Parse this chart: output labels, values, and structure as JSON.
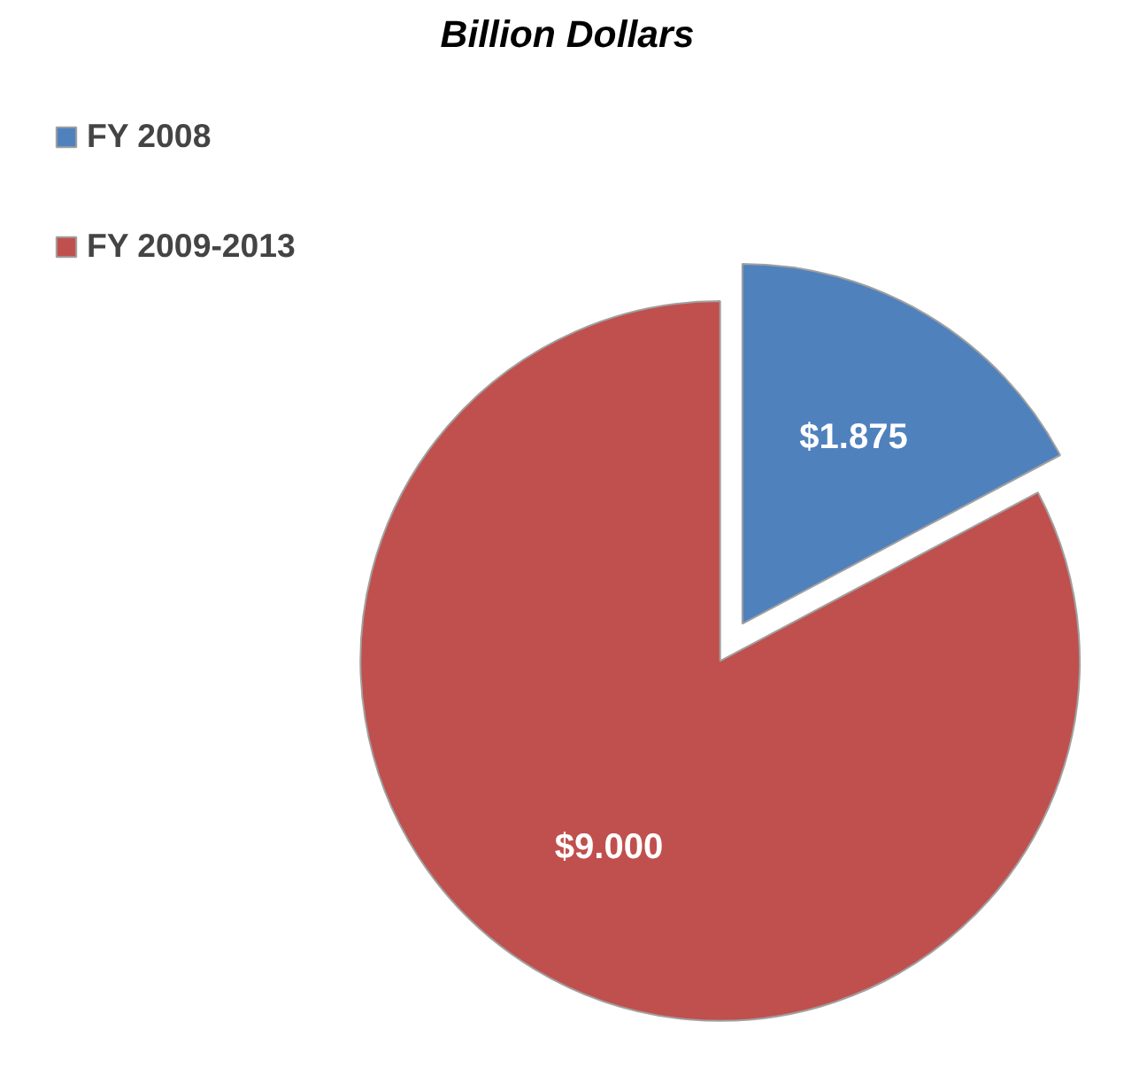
{
  "chart_data": {
    "type": "pie",
    "title": "Billion Dollars",
    "categories": [
      "FY 2008",
      "FY 2009-2013"
    ],
    "values": [
      1.875,
      9.0
    ],
    "colors": [
      "#4f81bd",
      "#c0504d"
    ],
    "value_labels": [
      "$1.875",
      "$9.000"
    ],
    "legend": "top left"
  }
}
